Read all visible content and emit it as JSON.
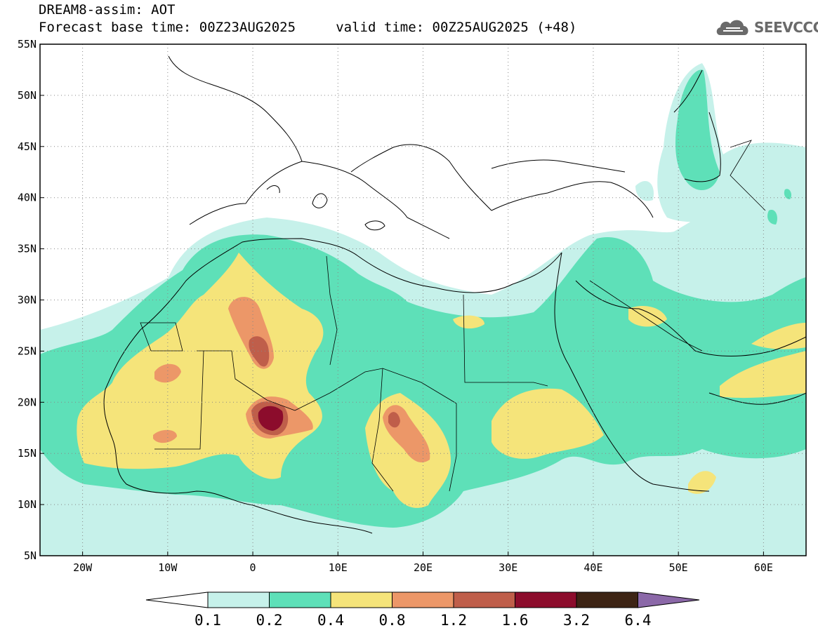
{
  "title": {
    "line1": "DREAM8-assim: AOT",
    "line2": "Forecast base time: 00Z23AUG2025     valid time: 00Z25AUG2025 (+48)"
  },
  "logo": {
    "text": "SEEVCCC",
    "icon": "cloud-icon"
  },
  "map": {
    "lon_range": [
      -25,
      65
    ],
    "lat_range": [
      5,
      55
    ],
    "grid": "dotted",
    "lat_ticks": [
      "5N",
      "10N",
      "15N",
      "20N",
      "25N",
      "30N",
      "35N",
      "40N",
      "45N",
      "50N",
      "55N"
    ],
    "lon_ticks": [
      "20W",
      "10W",
      "0",
      "10E",
      "20E",
      "30E",
      "40E",
      "50E",
      "60E"
    ]
  },
  "colorbar": {
    "labels": [
      "0.1",
      "0.2",
      "0.4",
      "0.8",
      "1.2",
      "1.6",
      "3.2",
      "6.4"
    ],
    "colors": [
      "#ffffff",
      "#c6f1ea",
      "#5ee0b8",
      "#f5e47a",
      "#ec9768",
      "#bf5e4a",
      "#8c0c2c",
      "#3d2414",
      "#8b68a8"
    ]
  },
  "colors": {
    "c01": "#c6f1ea",
    "c02": "#5ee0b8",
    "c04": "#f5e47a",
    "c08": "#ec9768",
    "c12": "#bf5e4a",
    "c16": "#8c0c2c"
  }
}
